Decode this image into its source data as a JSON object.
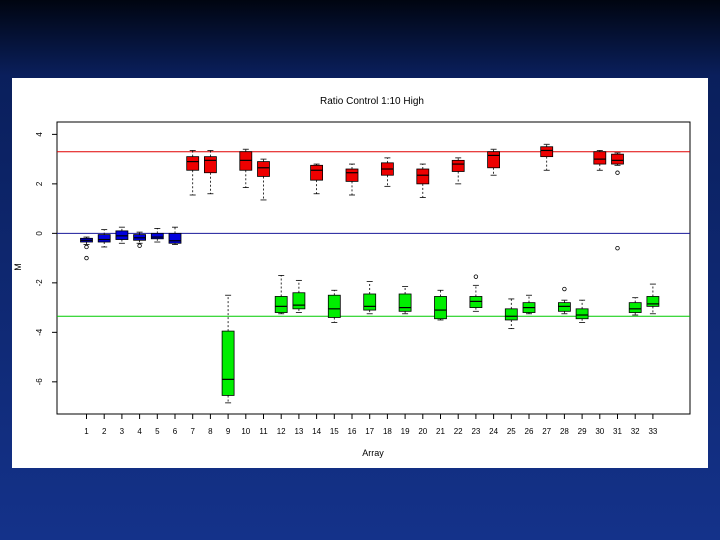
{
  "chart_data": {
    "type": "boxplot",
    "title": "Ratio Control 1:10 High",
    "xlabel": "Array",
    "ylabel": "M",
    "ylim": [
      -7.3,
      4
    ],
    "yticks": [
      4,
      2,
      0,
      -2,
      -4,
      -6
    ],
    "reference_lines": [
      {
        "y": 3.3,
        "color": "#e00000"
      },
      {
        "y": 0,
        "color": "#1a1a9a"
      },
      {
        "y": -3.35,
        "color": "#00cc00"
      }
    ],
    "colors": {
      "blue": "#0000dd",
      "red": "#ee0000",
      "green": "#00ee00"
    },
    "categories": [
      "1",
      "2",
      "3",
      "4",
      "5",
      "6",
      "7",
      "8",
      "9",
      "10",
      "11",
      "12",
      "13",
      "14",
      "15",
      "16",
      "17",
      "18",
      "19",
      "20",
      "21",
      "22",
      "23",
      "24",
      "25",
      "26",
      "27",
      "28",
      "29",
      "30",
      "31",
      "32",
      "33"
    ],
    "groups": [
      {
        "label": "1",
        "color": "blue",
        "boxes": [
          {
            "whisker_low": -0.45,
            "q1": -0.35,
            "median": -0.28,
            "q3": -0.2,
            "whisker_high": -0.15,
            "outliers": [
              -0.55,
              -1.0
            ]
          }
        ]
      },
      {
        "label": "2",
        "color": "blue",
        "boxes": [
          {
            "whisker_low": -0.55,
            "q1": -0.35,
            "median": -0.25,
            "q3": -0.05,
            "whisker_high": 0.15,
            "outliers": []
          }
        ]
      },
      {
        "label": "3",
        "color": "blue",
        "boxes": [
          {
            "whisker_low": -0.4,
            "q1": -0.25,
            "median": -0.1,
            "q3": 0.1,
            "whisker_high": 0.25,
            "outliers": []
          }
        ]
      },
      {
        "label": "4",
        "color": "blue",
        "boxes": [
          {
            "whisker_low": -0.4,
            "q1": -0.28,
            "median": -0.18,
            "q3": -0.05,
            "whisker_high": 0.05,
            "outliers": [
              -0.5
            ]
          }
        ]
      },
      {
        "label": "5",
        "color": "blue",
        "boxes": [
          {
            "whisker_low": -0.35,
            "q1": -0.22,
            "median": -0.15,
            "q3": 0.0,
            "whisker_high": 0.2,
            "outliers": []
          }
        ]
      },
      {
        "label": "6",
        "color": "blue",
        "boxes": [
          {
            "whisker_low": -0.45,
            "q1": -0.4,
            "median": -0.3,
            "q3": 0.0,
            "whisker_high": 0.25,
            "outliers": []
          }
        ]
      },
      {
        "label": "7",
        "color": "red",
        "boxes": [
          {
            "whisker_low": 1.55,
            "q1": 2.55,
            "median": 2.9,
            "q3": 3.1,
            "whisker_high": 3.35,
            "outliers": []
          }
        ]
      },
      {
        "label": "8",
        "color": "red",
        "boxes": [
          {
            "whisker_low": 1.6,
            "q1": 2.45,
            "median": 2.95,
            "q3": 3.1,
            "whisker_high": 3.35,
            "outliers": []
          }
        ]
      },
      {
        "label": "9",
        "color": "green",
        "boxes": [
          {
            "whisker_low": -6.85,
            "q1": -6.55,
            "median": -5.9,
            "q3": -3.95,
            "whisker_high": -2.5,
            "outliers": []
          }
        ]
      },
      {
        "label": "10",
        "color": "red",
        "boxes": [
          {
            "whisker_low": 1.85,
            "q1": 2.55,
            "median": 2.95,
            "q3": 3.3,
            "whisker_high": 3.4,
            "outliers": []
          }
        ]
      },
      {
        "label": "11",
        "color": "red",
        "boxes": [
          {
            "whisker_low": 1.35,
            "q1": 2.3,
            "median": 2.65,
            "q3": 2.9,
            "whisker_high": 3.0,
            "outliers": []
          }
        ]
      },
      {
        "label": "12",
        "color": "green",
        "boxes": [
          {
            "whisker_low": -3.25,
            "q1": -3.2,
            "median": -2.95,
            "q3": -2.55,
            "whisker_high": -1.7,
            "outliers": []
          }
        ]
      },
      {
        "label": "13",
        "color": "green",
        "boxes": [
          {
            "whisker_low": -3.2,
            "q1": -3.05,
            "median": -2.9,
            "q3": -2.4,
            "whisker_high": -1.9,
            "outliers": []
          }
        ]
      },
      {
        "label": "14",
        "color": "red",
        "boxes": [
          {
            "whisker_low": 1.6,
            "q1": 2.15,
            "median": 2.55,
            "q3": 2.75,
            "whisker_high": 2.8,
            "outliers": []
          }
        ]
      },
      {
        "label": "15",
        "color": "green",
        "boxes": [
          {
            "whisker_low": -3.6,
            "q1": -3.4,
            "median": -3.05,
            "q3": -2.5,
            "whisker_high": -2.3,
            "outliers": []
          }
        ]
      },
      {
        "label": "16",
        "color": "red",
        "boxes": [
          {
            "whisker_low": 1.55,
            "q1": 2.1,
            "median": 2.45,
            "q3": 2.6,
            "whisker_high": 2.8,
            "outliers": []
          }
        ]
      },
      {
        "label": "17",
        "color": "green",
        "boxes": [
          {
            "whisker_low": -3.25,
            "q1": -3.1,
            "median": -2.95,
            "q3": -2.45,
            "whisker_high": -1.95,
            "outliers": []
          }
        ]
      },
      {
        "label": "18",
        "color": "red",
        "boxes": [
          {
            "whisker_low": 1.9,
            "q1": 2.35,
            "median": 2.6,
            "q3": 2.85,
            "whisker_high": 3.05,
            "outliers": []
          }
        ]
      },
      {
        "label": "19",
        "color": "green",
        "boxes": [
          {
            "whisker_low": -3.25,
            "q1": -3.15,
            "median": -3.0,
            "q3": -2.45,
            "whisker_high": -2.15,
            "outliers": []
          }
        ]
      },
      {
        "label": "20",
        "color": "red",
        "boxes": [
          {
            "whisker_low": 1.45,
            "q1": 2.0,
            "median": 2.35,
            "q3": 2.6,
            "whisker_high": 2.8,
            "outliers": []
          }
        ]
      },
      {
        "label": "21",
        "color": "green",
        "boxes": [
          {
            "whisker_low": -3.5,
            "q1": -3.45,
            "median": -3.1,
            "q3": -2.55,
            "whisker_high": -2.3,
            "outliers": []
          }
        ]
      },
      {
        "label": "22",
        "color": "red",
        "boxes": [
          {
            "whisker_low": 2.0,
            "q1": 2.5,
            "median": 2.8,
            "q3": 2.95,
            "whisker_high": 3.05,
            "outliers": []
          }
        ]
      },
      {
        "label": "23",
        "color": "green",
        "boxes": [
          {
            "whisker_low": -3.15,
            "q1": -3.0,
            "median": -2.75,
            "q3": -2.55,
            "whisker_high": -2.1,
            "outliers": [
              -1.75
            ]
          }
        ]
      },
      {
        "label": "24",
        "color": "red",
        "boxes": [
          {
            "whisker_low": 2.35,
            "q1": 2.65,
            "median": 3.15,
            "q3": 3.3,
            "whisker_high": 3.4,
            "outliers": []
          }
        ]
      },
      {
        "label": "25",
        "color": "green",
        "boxes": [
          {
            "whisker_low": -3.85,
            "q1": -3.5,
            "median": -3.35,
            "q3": -3.05,
            "whisker_high": -2.65,
            "outliers": []
          }
        ]
      },
      {
        "label": "26",
        "color": "green",
        "boxes": [
          {
            "whisker_low": -3.25,
            "q1": -3.2,
            "median": -3.0,
            "q3": -2.8,
            "whisker_high": -2.5,
            "outliers": []
          }
        ]
      },
      {
        "label": "27",
        "color": "red",
        "boxes": [
          {
            "whisker_low": 2.55,
            "q1": 3.1,
            "median": 3.35,
            "q3": 3.5,
            "whisker_high": 3.6,
            "outliers": []
          }
        ]
      },
      {
        "label": "28",
        "color": "green",
        "boxes": [
          {
            "whisker_low": -3.25,
            "q1": -3.15,
            "median": -2.95,
            "q3": -2.8,
            "whisker_high": -2.7,
            "outliers": [
              -2.25
            ]
          }
        ]
      },
      {
        "label": "29",
        "color": "green",
        "boxes": [
          {
            "whisker_low": -3.6,
            "q1": -3.45,
            "median": -3.3,
            "q3": -3.05,
            "whisker_high": -2.7,
            "outliers": []
          }
        ]
      },
      {
        "label": "30",
        "color": "red",
        "boxes": [
          {
            "whisker_low": 2.55,
            "q1": 2.8,
            "median": 3.0,
            "q3": 3.3,
            "whisker_high": 3.35,
            "outliers": []
          }
        ]
      },
      {
        "label": "31",
        "color": "red",
        "boxes": [
          {
            "whisker_low": 2.75,
            "q1": 2.8,
            "median": 2.95,
            "q3": 3.2,
            "whisker_high": 3.25,
            "outliers": [
              2.45,
              -0.6
            ]
          }
        ]
      },
      {
        "label": "32",
        "color": "green",
        "boxes": [
          {
            "whisker_low": -3.3,
            "q1": -3.2,
            "median": -3.05,
            "q3": -2.8,
            "whisker_high": -2.6,
            "outliers": []
          }
        ]
      },
      {
        "label": "33",
        "color": "green",
        "boxes": [
          {
            "whisker_low": -3.25,
            "q1": -2.95,
            "median": -2.85,
            "q3": -2.55,
            "whisker_high": -2.05,
            "outliers": []
          }
        ]
      }
    ]
  }
}
